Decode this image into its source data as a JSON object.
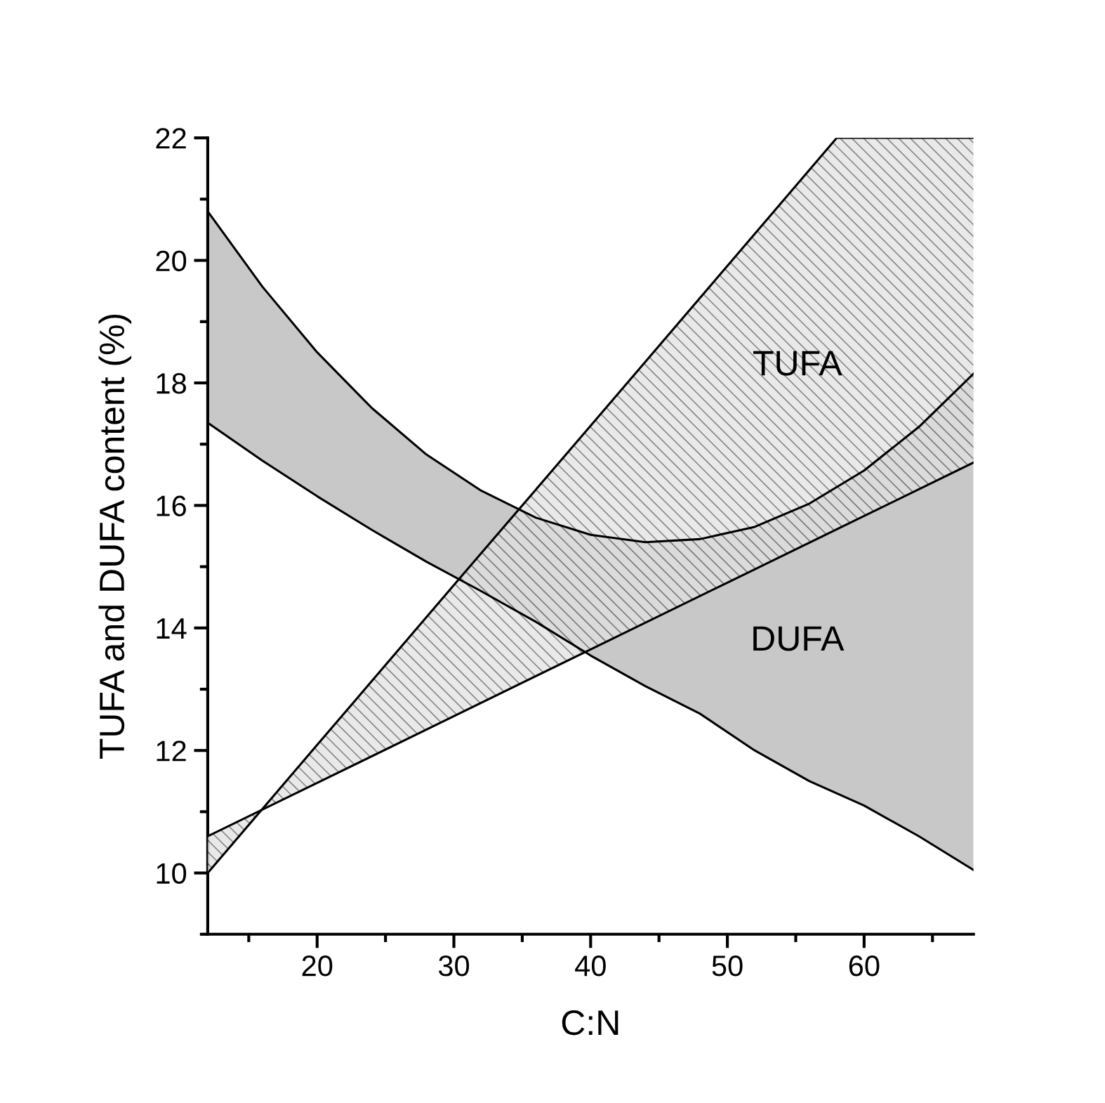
{
  "chart_data": {
    "type": "line",
    "xlabel": "C:N",
    "ylabel": "TUFA and DUFA content (%)",
    "xlim": [
      12,
      68
    ],
    "xticks": [
      20,
      30,
      40,
      50,
      60
    ],
    "ylim": [
      9,
      22
    ],
    "yticks": [
      10,
      12,
      14,
      16,
      18,
      20,
      22
    ],
    "grid": false,
    "legend": false,
    "marker": "none",
    "series": [
      {
        "name": "DUFA",
        "color": "#000000",
        "x": [
          12,
          16,
          20,
          24,
          28,
          32,
          36,
          40,
          44,
          48,
          52,
          56,
          60,
          64,
          68
        ],
        "values": [
          20.8,
          19.57,
          18.5,
          17.59,
          16.83,
          16.24,
          15.8,
          15.52,
          15.4,
          15.45,
          15.65,
          16.03,
          16.57,
          17.28,
          18.15
        ],
        "upper": [
          20.8,
          19.57,
          18.5,
          17.59,
          16.83,
          16.24,
          15.8,
          15.52,
          15.4,
          15.45,
          15.65,
          16.03,
          16.57,
          17.28,
          18.15
        ],
        "lower": [
          17.35,
          16.73,
          16.15,
          15.6,
          15.08,
          14.6,
          14.1,
          13.55,
          13.05,
          12.6,
          12.0,
          11.5,
          11.1,
          10.6,
          10.05
        ]
      },
      {
        "name": "TUFA",
        "color": "#000000",
        "x": [
          12,
          20,
          30,
          40,
          50,
          58,
          68
        ],
        "values": [
          10,
          12.09,
          14.7,
          17.3,
          19.91,
          22,
          22
        ],
        "upper": [
          10,
          12.09,
          14.7,
          17.3,
          19.91,
          22,
          22
        ],
        "lower": [
          10.6,
          11.47,
          12.56,
          13.65,
          14.74,
          15.61,
          16.7
        ]
      },
      {
        "color": "#000000",
        "x": [
          12,
          16,
          20,
          24,
          28,
          32,
          36,
          40,
          44,
          48,
          52,
          56,
          60,
          64,
          68
        ],
        "values": [
          17.35,
          16.73,
          16.15,
          15.6,
          15.08,
          14.6,
          14.1,
          13.55,
          13.05,
          12.6,
          12.0,
          11.5,
          11.1,
          10.6,
          10.05
        ]
      },
      {
        "color": "#000000",
        "x": [
          12,
          20,
          30,
          40,
          50,
          58,
          68
        ],
        "values": [
          10.6,
          11.47,
          12.56,
          13.65,
          14.74,
          15.61,
          16.7
        ]
      }
    ]
  }
}
